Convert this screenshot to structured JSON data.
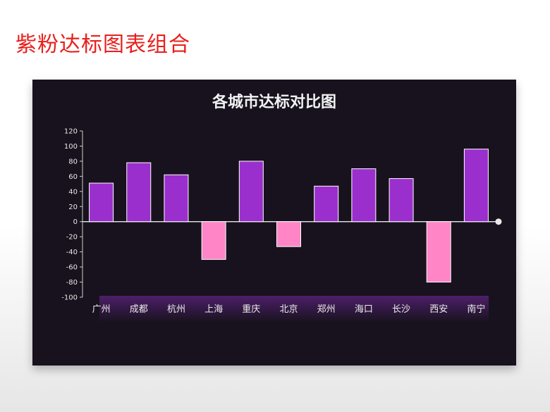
{
  "slide": {
    "title": "紫粉达标图表组合"
  },
  "colors": {
    "above": "#9b2fcd",
    "below": "#ff85c6",
    "panel": "#17121d"
  },
  "chart_data": {
    "type": "bar",
    "title": "各城市达标对比图",
    "categories": [
      "广州",
      "成都",
      "杭州",
      "上海",
      "重庆",
      "北京",
      "郑州",
      "海口",
      "长沙",
      "西安",
      "南宁"
    ],
    "values": [
      51,
      78,
      62,
      -50,
      80,
      -33,
      47,
      70,
      57,
      -80,
      96
    ],
    "ylim": [
      -100,
      120
    ],
    "yticks": [
      120,
      100,
      80,
      60,
      40,
      20,
      0,
      -20,
      -40,
      -60,
      -80,
      -100
    ],
    "xlabel": "",
    "ylabel": "",
    "grid": false,
    "legend": "none"
  }
}
